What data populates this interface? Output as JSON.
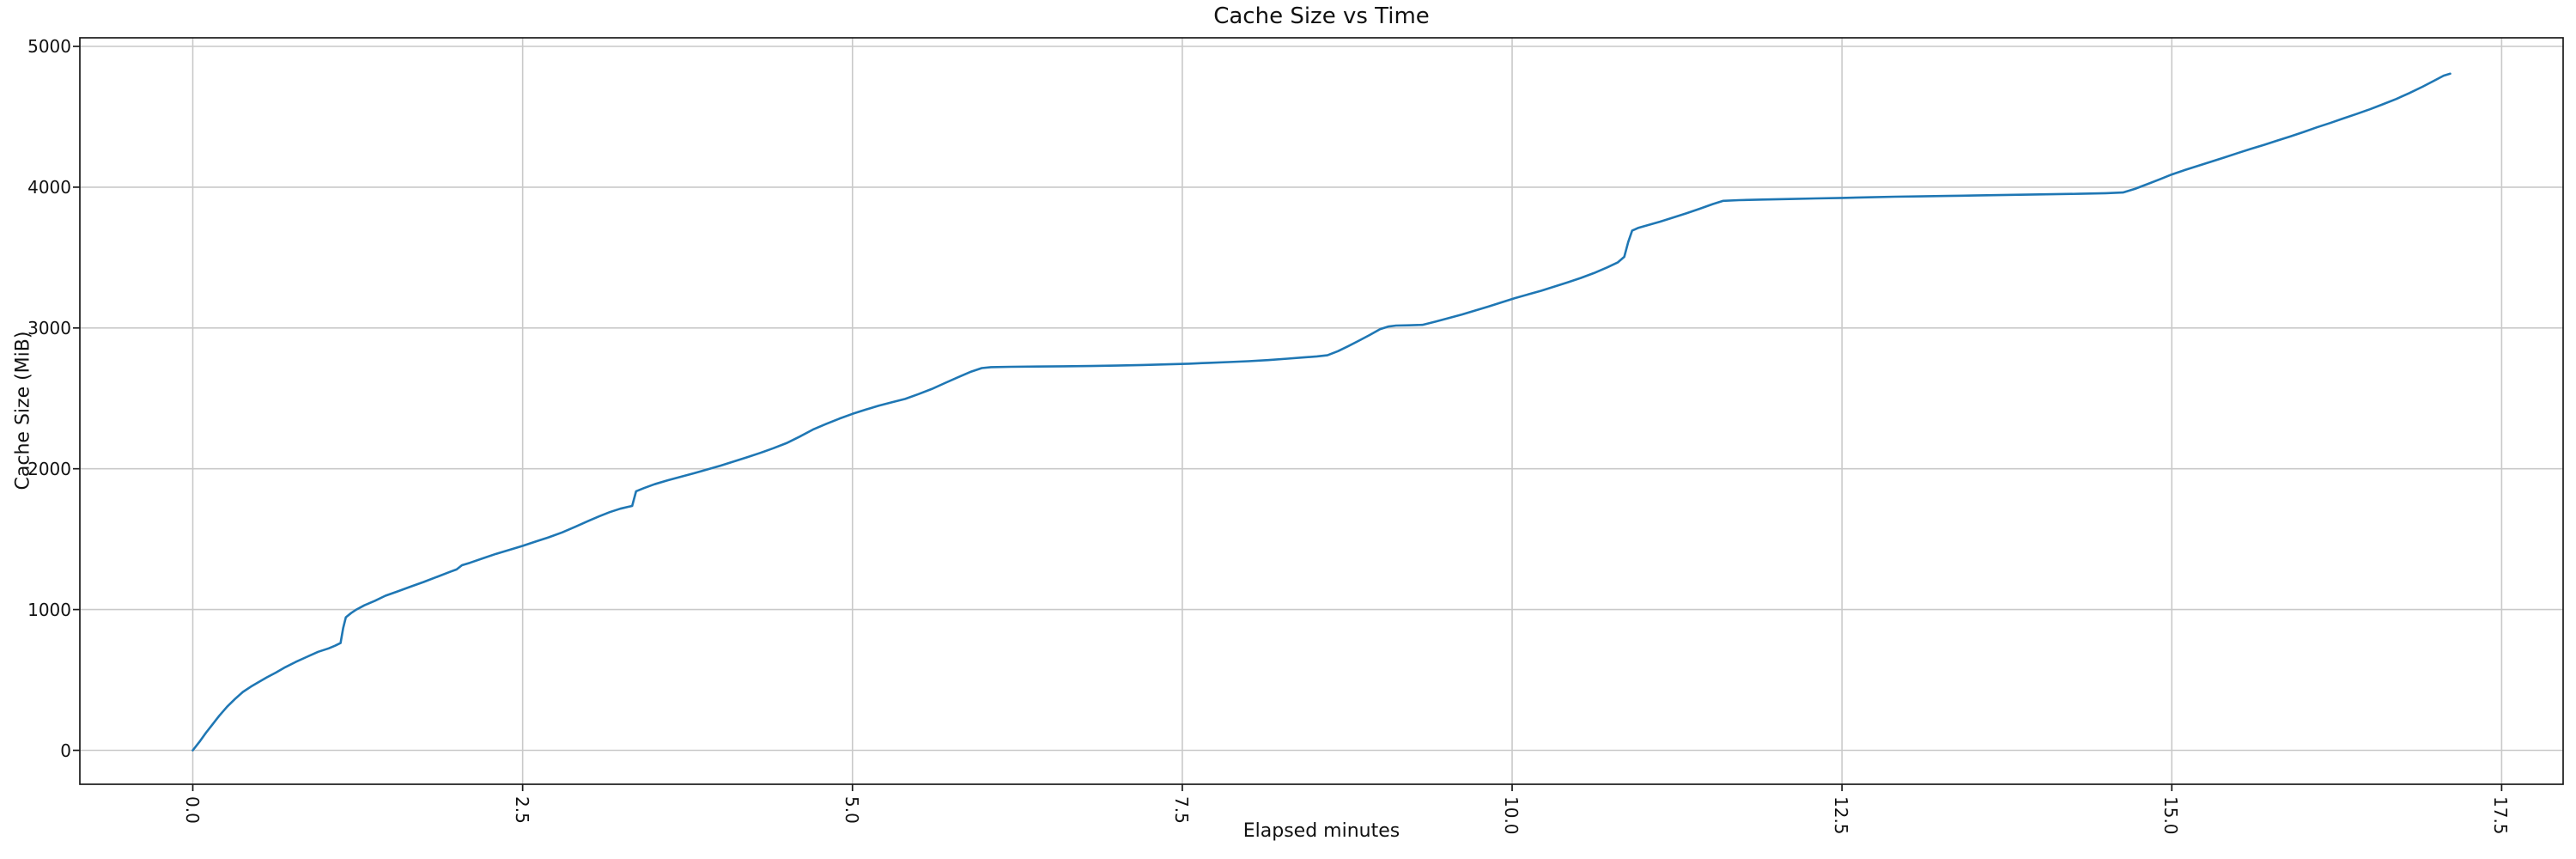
{
  "title": "Cache Size vs Time",
  "chart_data": {
    "type": "line",
    "title": "Cache Size vs Time",
    "xlabel": "Elapsed minutes",
    "ylabel": "Cache Size (MiB)",
    "x_ticks": [
      0.0,
      2.5,
      5.0,
      7.5,
      10.0,
      12.5,
      15.0,
      17.5
    ],
    "x_tick_labels": [
      "0.0",
      "2.5",
      "5.0",
      "7.5",
      "10.0",
      "12.5",
      "15.0",
      "17.5"
    ],
    "y_ticks": [
      0,
      1000,
      2000,
      3000,
      4000,
      5000
    ],
    "y_tick_labels": [
      "0",
      "1000",
      "2000",
      "3000",
      "4000",
      "5000"
    ],
    "xlim": [
      -0.856,
      17.966
    ],
    "ylim": [
      -241,
      5061
    ],
    "grid": true,
    "legend": false,
    "line_color": "#1f77b4",
    "grid_color": "#c9c9c9",
    "spine_color": "#1a1a1a",
    "series": [
      {
        "name": "cache-size",
        "points": [
          [
            0.0,
            0
          ],
          [
            0.05,
            60
          ],
          [
            0.1,
            125
          ],
          [
            0.15,
            185
          ],
          [
            0.2,
            245
          ],
          [
            0.26,
            310
          ],
          [
            0.32,
            365
          ],
          [
            0.38,
            415
          ],
          [
            0.44,
            452
          ],
          [
            0.5,
            485
          ],
          [
            0.56,
            518
          ],
          [
            0.63,
            552
          ],
          [
            0.7,
            590
          ],
          [
            0.78,
            628
          ],
          [
            0.86,
            662
          ],
          [
            0.95,
            700
          ],
          [
            1.03,
            724
          ],
          [
            1.08,
            744
          ],
          [
            1.12,
            762
          ],
          [
            1.14,
            870
          ],
          [
            1.16,
            945
          ],
          [
            1.2,
            975
          ],
          [
            1.24,
            1000
          ],
          [
            1.3,
            1030
          ],
          [
            1.38,
            1062
          ],
          [
            1.46,
            1098
          ],
          [
            1.55,
            1128
          ],
          [
            1.65,
            1162
          ],
          [
            1.75,
            1196
          ],
          [
            1.85,
            1232
          ],
          [
            1.95,
            1268
          ],
          [
            2.0,
            1285
          ],
          [
            2.04,
            1315
          ],
          [
            2.1,
            1332
          ],
          [
            2.2,
            1364
          ],
          [
            2.3,
            1396
          ],
          [
            2.4,
            1424
          ],
          [
            2.5,
            1452
          ],
          [
            2.6,
            1483
          ],
          [
            2.7,
            1514
          ],
          [
            2.8,
            1548
          ],
          [
            2.9,
            1588
          ],
          [
            3.0,
            1630
          ],
          [
            3.08,
            1662
          ],
          [
            3.16,
            1692
          ],
          [
            3.24,
            1716
          ],
          [
            3.3,
            1730
          ],
          [
            3.33,
            1736
          ],
          [
            3.36,
            1840
          ],
          [
            3.42,
            1863
          ],
          [
            3.5,
            1890
          ],
          [
            3.6,
            1918
          ],
          [
            3.7,
            1943
          ],
          [
            3.8,
            1968
          ],
          [
            3.9,
            1995
          ],
          [
            4.0,
            2022
          ],
          [
            4.1,
            2052
          ],
          [
            4.2,
            2081
          ],
          [
            4.3,
            2112
          ],
          [
            4.4,
            2146
          ],
          [
            4.5,
            2182
          ],
          [
            4.6,
            2228
          ],
          [
            4.7,
            2278
          ],
          [
            4.8,
            2318
          ],
          [
            4.9,
            2356
          ],
          [
            5.0,
            2390
          ],
          [
            5.1,
            2420
          ],
          [
            5.2,
            2448
          ],
          [
            5.3,
            2472
          ],
          [
            5.4,
            2496
          ],
          [
            5.5,
            2530
          ],
          [
            5.6,
            2566
          ],
          [
            5.7,
            2608
          ],
          [
            5.8,
            2650
          ],
          [
            5.9,
            2690
          ],
          [
            5.98,
            2715
          ],
          [
            6.05,
            2722
          ],
          [
            6.2,
            2724
          ],
          [
            6.4,
            2726
          ],
          [
            6.6,
            2728
          ],
          [
            6.8,
            2730
          ],
          [
            7.0,
            2733
          ],
          [
            7.2,
            2737
          ],
          [
            7.4,
            2742
          ],
          [
            7.55,
            2746
          ],
          [
            7.7,
            2752
          ],
          [
            7.85,
            2758
          ],
          [
            8.0,
            2764
          ],
          [
            8.15,
            2772
          ],
          [
            8.3,
            2782
          ],
          [
            8.42,
            2791
          ],
          [
            8.52,
            2798
          ],
          [
            8.6,
            2806
          ],
          [
            8.68,
            2835
          ],
          [
            8.76,
            2872
          ],
          [
            8.84,
            2910
          ],
          [
            8.92,
            2950
          ],
          [
            9.0,
            2992
          ],
          [
            9.06,
            3010
          ],
          [
            9.12,
            3017
          ],
          [
            9.22,
            3019
          ],
          [
            9.32,
            3022
          ],
          [
            9.42,
            3045
          ],
          [
            9.52,
            3070
          ],
          [
            9.62,
            3096
          ],
          [
            9.72,
            3124
          ],
          [
            9.82,
            3152
          ],
          [
            9.92,
            3182
          ],
          [
            10.02,
            3212
          ],
          [
            10.12,
            3238
          ],
          [
            10.22,
            3264
          ],
          [
            10.32,
            3294
          ],
          [
            10.42,
            3324
          ],
          [
            10.52,
            3355
          ],
          [
            10.62,
            3390
          ],
          [
            10.72,
            3430
          ],
          [
            10.8,
            3465
          ],
          [
            10.85,
            3505
          ],
          [
            10.88,
            3610
          ],
          [
            10.91,
            3692
          ],
          [
            10.96,
            3712
          ],
          [
            11.02,
            3728
          ],
          [
            11.12,
            3755
          ],
          [
            11.22,
            3784
          ],
          [
            11.32,
            3814
          ],
          [
            11.42,
            3846
          ],
          [
            11.52,
            3880
          ],
          [
            11.6,
            3903
          ],
          [
            11.72,
            3908
          ],
          [
            11.9,
            3912
          ],
          [
            12.1,
            3916
          ],
          [
            12.3,
            3920
          ],
          [
            12.5,
            3924
          ],
          [
            12.7,
            3928
          ],
          [
            12.9,
            3932
          ],
          [
            13.1,
            3935
          ],
          [
            13.3,
            3938
          ],
          [
            13.5,
            3941
          ],
          [
            13.7,
            3944
          ],
          [
            13.9,
            3947
          ],
          [
            14.1,
            3950
          ],
          [
            14.3,
            3953
          ],
          [
            14.5,
            3957
          ],
          [
            14.63,
            3962
          ],
          [
            14.72,
            3988
          ],
          [
            14.81,
            4020
          ],
          [
            14.91,
            4056
          ],
          [
            15.0,
            4090
          ],
          [
            15.1,
            4122
          ],
          [
            15.2,
            4152
          ],
          [
            15.3,
            4182
          ],
          [
            15.4,
            4212
          ],
          [
            15.5,
            4242
          ],
          [
            15.6,
            4272
          ],
          [
            15.7,
            4301
          ],
          [
            15.8,
            4331
          ],
          [
            15.9,
            4361
          ],
          [
            16.0,
            4392
          ],
          [
            16.1,
            4425
          ],
          [
            16.2,
            4456
          ],
          [
            16.3,
            4488
          ],
          [
            16.4,
            4520
          ],
          [
            16.5,
            4553
          ],
          [
            16.6,
            4589
          ],
          [
            16.7,
            4626
          ],
          [
            16.8,
            4668
          ],
          [
            16.9,
            4713
          ],
          [
            17.0,
            4762
          ],
          [
            17.06,
            4792
          ],
          [
            17.11,
            4806
          ]
        ]
      }
    ]
  }
}
